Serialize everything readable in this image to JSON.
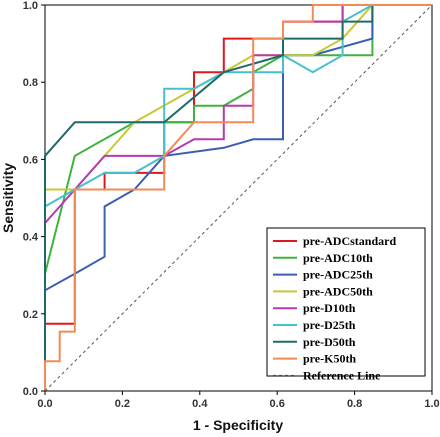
{
  "chart_data": {
    "type": "line",
    "title": "",
    "xlabel": "1 - Specificity",
    "ylabel": "Sensitivity",
    "xlim": [
      0,
      1
    ],
    "ylim": [
      0,
      1
    ],
    "xticks": [
      "0.0",
      "0.2",
      "0.4",
      "0.6",
      "0.8",
      "1.0"
    ],
    "yticks": [
      "0.0",
      "0.2",
      "0.4",
      "0.6",
      "0.8",
      "1.0"
    ],
    "grid": false,
    "legend_position": "bottom-right",
    "series": [
      {
        "name": "pre-ADCstandard",
        "color": "#e0181e",
        "points": [
          [
            0,
            0
          ],
          [
            0,
            0.174
          ],
          [
            0.077,
            0.174
          ],
          [
            0.077,
            0.522
          ],
          [
            0.154,
            0.522
          ],
          [
            0.154,
            0.565
          ],
          [
            0.308,
            0.565
          ],
          [
            0.308,
            0.696
          ],
          [
            0.385,
            0.696
          ],
          [
            0.385,
            0.826
          ],
          [
            0.462,
            0.826
          ],
          [
            0.462,
            0.913
          ],
          [
            0.615,
            0.913
          ],
          [
            0.615,
            0.957
          ],
          [
            0.769,
            0.957
          ],
          [
            0.769,
            1
          ],
          [
            1,
            1
          ]
        ]
      },
      {
        "name": "pre-ADC10th",
        "color": "#3fb23f",
        "points": [
          [
            0,
            0
          ],
          [
            0,
            0.304
          ],
          [
            0.077,
            0.609
          ],
          [
            0.231,
            0.696
          ],
          [
            0.385,
            0.696
          ],
          [
            0.385,
            0.739
          ],
          [
            0.462,
            0.739
          ],
          [
            0.538,
            0.783
          ],
          [
            0.538,
            0.826
          ],
          [
            0.615,
            0.87
          ],
          [
            0.769,
            0.87
          ],
          [
            0.846,
            0.87
          ],
          [
            0.846,
            1
          ],
          [
            1,
            1
          ]
        ]
      },
      {
        "name": "pre-ADC25th",
        "color": "#3a5fb0",
        "points": [
          [
            0,
            0
          ],
          [
            0,
            0.261
          ],
          [
            0.077,
            0.304
          ],
          [
            0.154,
            0.348
          ],
          [
            0.154,
            0.478
          ],
          [
            0.231,
            0.522
          ],
          [
            0.308,
            0.609
          ],
          [
            0.462,
            0.63
          ],
          [
            0.538,
            0.652
          ],
          [
            0.615,
            0.652
          ],
          [
            0.615,
            0.87
          ],
          [
            0.692,
            0.87
          ],
          [
            0.846,
            0.913
          ],
          [
            0.846,
            1
          ],
          [
            1,
            1
          ]
        ]
      },
      {
        "name": "pre-ADC50th",
        "color": "#c8c837",
        "points": [
          [
            0,
            0
          ],
          [
            0,
            0.522
          ],
          [
            0.077,
            0.522
          ],
          [
            0.231,
            0.696
          ],
          [
            0.385,
            0.783
          ],
          [
            0.462,
            0.826
          ],
          [
            0.538,
            0.87
          ],
          [
            0.692,
            0.87
          ],
          [
            0.769,
            0.913
          ],
          [
            0.846,
            1
          ],
          [
            1,
            1
          ]
        ]
      },
      {
        "name": "pre-D10th",
        "color": "#b63bb0",
        "points": [
          [
            0,
            0
          ],
          [
            0,
            0.435
          ],
          [
            0.077,
            0.522
          ],
          [
            0.154,
            0.609
          ],
          [
            0.231,
            0.609
          ],
          [
            0.308,
            0.609
          ],
          [
            0.385,
            0.652
          ],
          [
            0.462,
            0.652
          ],
          [
            0.462,
            0.739
          ],
          [
            0.538,
            0.739
          ],
          [
            0.538,
            0.87
          ],
          [
            0.615,
            0.87
          ],
          [
            0.615,
            0.957
          ],
          [
            0.769,
            0.957
          ],
          [
            0.769,
            1
          ],
          [
            1,
            1
          ]
        ]
      },
      {
        "name": "pre-D25th",
        "color": "#45c0cc",
        "points": [
          [
            0,
            0
          ],
          [
            0,
            0.478
          ],
          [
            0.077,
            0.522
          ],
          [
            0.154,
            0.565
          ],
          [
            0.231,
            0.565
          ],
          [
            0.308,
            0.609
          ],
          [
            0.308,
            0.783
          ],
          [
            0.385,
            0.783
          ],
          [
            0.462,
            0.826
          ],
          [
            0.615,
            0.826
          ],
          [
            0.615,
            0.87
          ],
          [
            0.692,
            0.826
          ],
          [
            0.769,
            0.87
          ],
          [
            0.769,
            0.957
          ],
          [
            0.846,
            1
          ],
          [
            1,
            1
          ]
        ]
      },
      {
        "name": "pre-D50th",
        "color": "#1f6a6a",
        "points": [
          [
            0,
            0
          ],
          [
            0,
            0.609
          ],
          [
            0.077,
            0.696
          ],
          [
            0.308,
            0.696
          ],
          [
            0.462,
            0.826
          ],
          [
            0.615,
            0.87
          ],
          [
            0.615,
            0.913
          ],
          [
            0.769,
            0.913
          ],
          [
            0.769,
            0.957
          ],
          [
            0.846,
            0.957
          ],
          [
            0.846,
            1
          ],
          [
            1,
            1
          ]
        ]
      },
      {
        "name": "pre-K50th",
        "color": "#f58a55",
        "points": [
          [
            0,
            0
          ],
          [
            0,
            0.077
          ],
          [
            0.038,
            0.077
          ],
          [
            0.038,
            0.154
          ],
          [
            0.077,
            0.154
          ],
          [
            0.077,
            0.522
          ],
          [
            0.308,
            0.522
          ],
          [
            0.308,
            0.609
          ],
          [
            0.385,
            0.696
          ],
          [
            0.538,
            0.696
          ],
          [
            0.538,
            0.913
          ],
          [
            0.615,
            0.913
          ],
          [
            0.615,
            0.957
          ],
          [
            0.692,
            0.957
          ],
          [
            0.692,
            1
          ],
          [
            1,
            1
          ]
        ]
      }
    ],
    "reference_line": {
      "name": "Reference Line",
      "color": "#555555",
      "points": [
        [
          0,
          0
        ],
        [
          1,
          1
        ]
      ]
    }
  }
}
